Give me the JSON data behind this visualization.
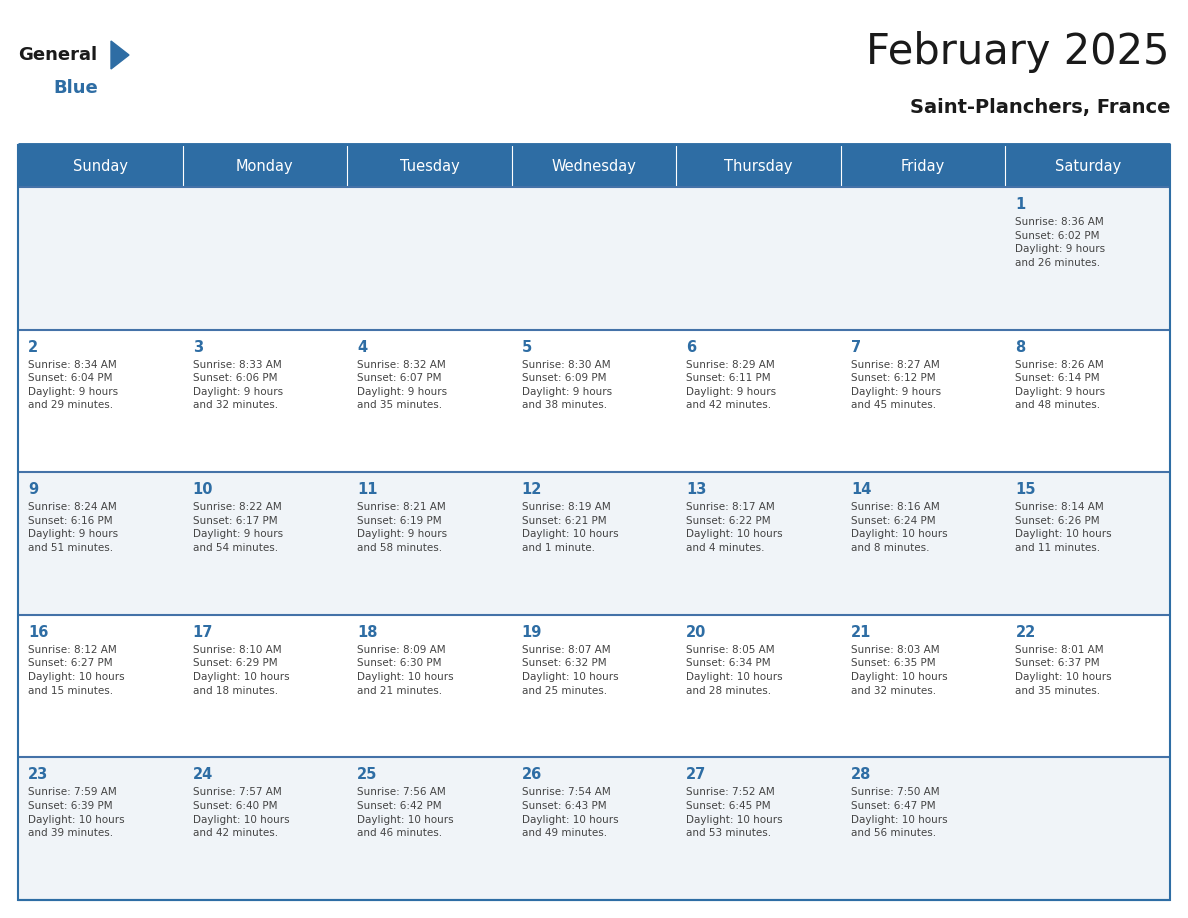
{
  "title": "February 2025",
  "subtitle": "Saint-Planchers, France",
  "header_bg": "#2E6DA4",
  "header_text_color": "#FFFFFF",
  "cell_bg_odd": "#F0F4F8",
  "cell_bg_even": "#FFFFFF",
  "text_color_dark": "#1a1a1a",
  "text_color_day": "#2E6DA4",
  "border_color": "#2E6DA4",
  "line_color": "#4472A8",
  "day_names": [
    "Sunday",
    "Monday",
    "Tuesday",
    "Wednesday",
    "Thursday",
    "Friday",
    "Saturday"
  ],
  "weeks": [
    [
      {
        "day": null,
        "info": null
      },
      {
        "day": null,
        "info": null
      },
      {
        "day": null,
        "info": null
      },
      {
        "day": null,
        "info": null
      },
      {
        "day": null,
        "info": null
      },
      {
        "day": null,
        "info": null
      },
      {
        "day": 1,
        "info": "Sunrise: 8:36 AM\nSunset: 6:02 PM\nDaylight: 9 hours\nand 26 minutes."
      }
    ],
    [
      {
        "day": 2,
        "info": "Sunrise: 8:34 AM\nSunset: 6:04 PM\nDaylight: 9 hours\nand 29 minutes."
      },
      {
        "day": 3,
        "info": "Sunrise: 8:33 AM\nSunset: 6:06 PM\nDaylight: 9 hours\nand 32 minutes."
      },
      {
        "day": 4,
        "info": "Sunrise: 8:32 AM\nSunset: 6:07 PM\nDaylight: 9 hours\nand 35 minutes."
      },
      {
        "day": 5,
        "info": "Sunrise: 8:30 AM\nSunset: 6:09 PM\nDaylight: 9 hours\nand 38 minutes."
      },
      {
        "day": 6,
        "info": "Sunrise: 8:29 AM\nSunset: 6:11 PM\nDaylight: 9 hours\nand 42 minutes."
      },
      {
        "day": 7,
        "info": "Sunrise: 8:27 AM\nSunset: 6:12 PM\nDaylight: 9 hours\nand 45 minutes."
      },
      {
        "day": 8,
        "info": "Sunrise: 8:26 AM\nSunset: 6:14 PM\nDaylight: 9 hours\nand 48 minutes."
      }
    ],
    [
      {
        "day": 9,
        "info": "Sunrise: 8:24 AM\nSunset: 6:16 PM\nDaylight: 9 hours\nand 51 minutes."
      },
      {
        "day": 10,
        "info": "Sunrise: 8:22 AM\nSunset: 6:17 PM\nDaylight: 9 hours\nand 54 minutes."
      },
      {
        "day": 11,
        "info": "Sunrise: 8:21 AM\nSunset: 6:19 PM\nDaylight: 9 hours\nand 58 minutes."
      },
      {
        "day": 12,
        "info": "Sunrise: 8:19 AM\nSunset: 6:21 PM\nDaylight: 10 hours\nand 1 minute."
      },
      {
        "day": 13,
        "info": "Sunrise: 8:17 AM\nSunset: 6:22 PM\nDaylight: 10 hours\nand 4 minutes."
      },
      {
        "day": 14,
        "info": "Sunrise: 8:16 AM\nSunset: 6:24 PM\nDaylight: 10 hours\nand 8 minutes."
      },
      {
        "day": 15,
        "info": "Sunrise: 8:14 AM\nSunset: 6:26 PM\nDaylight: 10 hours\nand 11 minutes."
      }
    ],
    [
      {
        "day": 16,
        "info": "Sunrise: 8:12 AM\nSunset: 6:27 PM\nDaylight: 10 hours\nand 15 minutes."
      },
      {
        "day": 17,
        "info": "Sunrise: 8:10 AM\nSunset: 6:29 PM\nDaylight: 10 hours\nand 18 minutes."
      },
      {
        "day": 18,
        "info": "Sunrise: 8:09 AM\nSunset: 6:30 PM\nDaylight: 10 hours\nand 21 minutes."
      },
      {
        "day": 19,
        "info": "Sunrise: 8:07 AM\nSunset: 6:32 PM\nDaylight: 10 hours\nand 25 minutes."
      },
      {
        "day": 20,
        "info": "Sunrise: 8:05 AM\nSunset: 6:34 PM\nDaylight: 10 hours\nand 28 minutes."
      },
      {
        "day": 21,
        "info": "Sunrise: 8:03 AM\nSunset: 6:35 PM\nDaylight: 10 hours\nand 32 minutes."
      },
      {
        "day": 22,
        "info": "Sunrise: 8:01 AM\nSunset: 6:37 PM\nDaylight: 10 hours\nand 35 minutes."
      }
    ],
    [
      {
        "day": 23,
        "info": "Sunrise: 7:59 AM\nSunset: 6:39 PM\nDaylight: 10 hours\nand 39 minutes."
      },
      {
        "day": 24,
        "info": "Sunrise: 7:57 AM\nSunset: 6:40 PM\nDaylight: 10 hours\nand 42 minutes."
      },
      {
        "day": 25,
        "info": "Sunrise: 7:56 AM\nSunset: 6:42 PM\nDaylight: 10 hours\nand 46 minutes."
      },
      {
        "day": 26,
        "info": "Sunrise: 7:54 AM\nSunset: 6:43 PM\nDaylight: 10 hours\nand 49 minutes."
      },
      {
        "day": 27,
        "info": "Sunrise: 7:52 AM\nSunset: 6:45 PM\nDaylight: 10 hours\nand 53 minutes."
      },
      {
        "day": 28,
        "info": "Sunrise: 7:50 AM\nSunset: 6:47 PM\nDaylight: 10 hours\nand 56 minutes."
      },
      {
        "day": null,
        "info": null
      }
    ]
  ],
  "logo_general_color": "#1a1a1a",
  "logo_blue_color": "#2E6DA4",
  "logo_triangle_color": "#2E6DA4",
  "fig_width": 11.88,
  "fig_height": 9.18,
  "dpi": 100
}
